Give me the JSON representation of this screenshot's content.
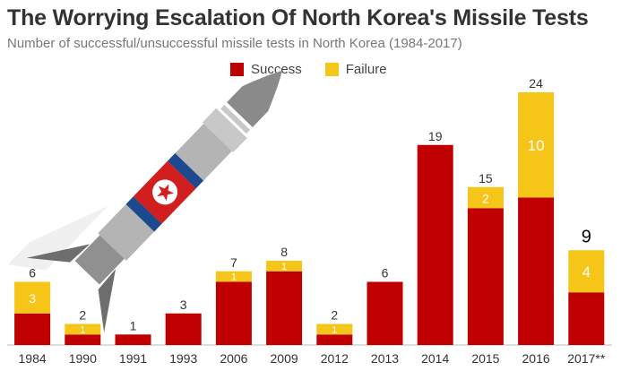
{
  "title": "The Worrying Escalation Of North Korea's Missile Tests",
  "subtitle": "Number of successful/unsuccessful missile tests in North Korea (1984-2017)",
  "colors": {
    "success": "#c00000",
    "failure": "#f5c518"
  },
  "chart_data": {
    "type": "bar",
    "stacked": true,
    "categories": [
      "1984",
      "1990",
      "1991",
      "1993",
      "2006",
      "2009",
      "2012",
      "2013",
      "2014",
      "2015",
      "2016",
      "2017**"
    ],
    "series": [
      {
        "name": "Success",
        "values": [
          3,
          1,
          1,
          3,
          6,
          7,
          1,
          6,
          19,
          13,
          14,
          5
        ]
      },
      {
        "name": "Failure",
        "values": [
          3,
          1,
          0,
          0,
          1,
          1,
          1,
          0,
          0,
          2,
          10,
          4
        ]
      }
    ],
    "failure_labels": [
      "3",
      "1",
      "",
      "",
      "1",
      "1",
      "1",
      "",
      "",
      "2",
      "10",
      "4"
    ],
    "total_labels": [
      "6",
      "2",
      "1",
      "3",
      "7",
      "8",
      "2",
      "6",
      "19",
      "15",
      "24",
      "9"
    ],
    "ylim": [
      0,
      24
    ],
    "legend_position": "top-center",
    "grid": false
  },
  "decoration": {
    "illustration": "north-korean-missile-icon"
  }
}
